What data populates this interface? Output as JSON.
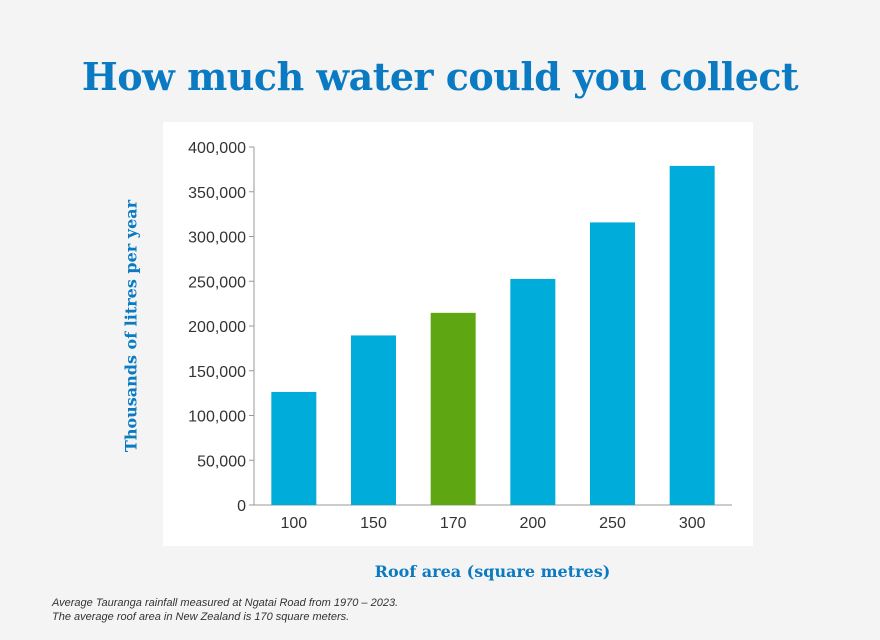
{
  "chart_data": {
    "type": "bar",
    "title": "How much water could you collect",
    "xlabel": "Roof area (square metres)",
    "ylabel": "Thousands of litres per year",
    "categories": [
      "100",
      "150",
      "170",
      "200",
      "250",
      "300"
    ],
    "values": [
      126300,
      189450,
      214710,
      252600,
      315750,
      378900
    ],
    "colors": [
      "#00acd9",
      "#00acd9",
      "#5fa712",
      "#00acd9",
      "#00acd9",
      "#00acd9"
    ],
    "ylim": [
      0,
      400000
    ],
    "yticks": [
      "0",
      "50,000",
      "100,000",
      "150,000",
      "200,000",
      "250,000",
      "300,000",
      "350,000",
      "400,000"
    ],
    "grid": false,
    "legend": "none"
  },
  "notes": [
    "Average Tauranga rainfall measured at Ngatai Road from 1970 – 2023.",
    "The average roof area in New Zealand is 170 square meters."
  ]
}
